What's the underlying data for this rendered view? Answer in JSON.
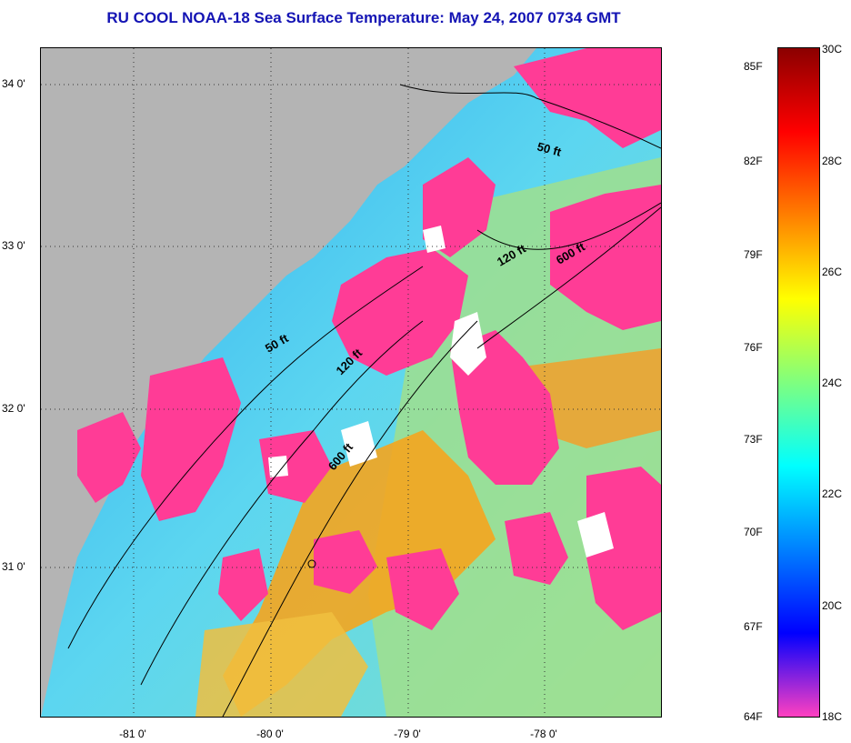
{
  "title": "RU COOL  NOAA-18  Sea Surface Temperature:  May 24, 2007 0734 GMT",
  "map": {
    "latitude_ticks": [
      {
        "label": "34 0'",
        "value": 34.0
      },
      {
        "label": "33 0'",
        "value": 33.0
      },
      {
        "label": "32 0'",
        "value": 32.0
      },
      {
        "label": "31 0'",
        "value": 31.0
      }
    ],
    "longitude_ticks": [
      {
        "label": "-81 0'",
        "value": -81.0
      },
      {
        "label": "-80 0'",
        "value": -80.0
      },
      {
        "label": "-79 0'",
        "value": -79.0
      },
      {
        "label": "-78 0'",
        "value": -78.0
      }
    ],
    "contours": [
      {
        "label": "50 ft"
      },
      {
        "label": "120 ft"
      },
      {
        "label": "600 ft"
      },
      {
        "label": "50 ft"
      },
      {
        "label": "120 ft"
      },
      {
        "label": "600 ft"
      }
    ],
    "colors": {
      "land": "#b4b4b4",
      "cloud": "#ff3c96",
      "no_data": "#ffffff",
      "cool_water": "#3cc8f0",
      "warm_water": "#f5a51e",
      "mid_water": "#b4e664"
    }
  },
  "colorbar": {
    "fahrenheit_labels": [
      "85F",
      "82F",
      "79F",
      "76F",
      "73F",
      "70F",
      "67F",
      "64F"
    ],
    "celsius_labels": [
      "30C",
      "28C",
      "26C",
      "24C",
      "22C",
      "20C",
      "18C"
    ],
    "colors": [
      "#8b0000",
      "#ff0000",
      "#ff7f00",
      "#ffff00",
      "#7fff7f",
      "#00ffff",
      "#0080ff",
      "#0000ff",
      "#ff40c0"
    ]
  }
}
